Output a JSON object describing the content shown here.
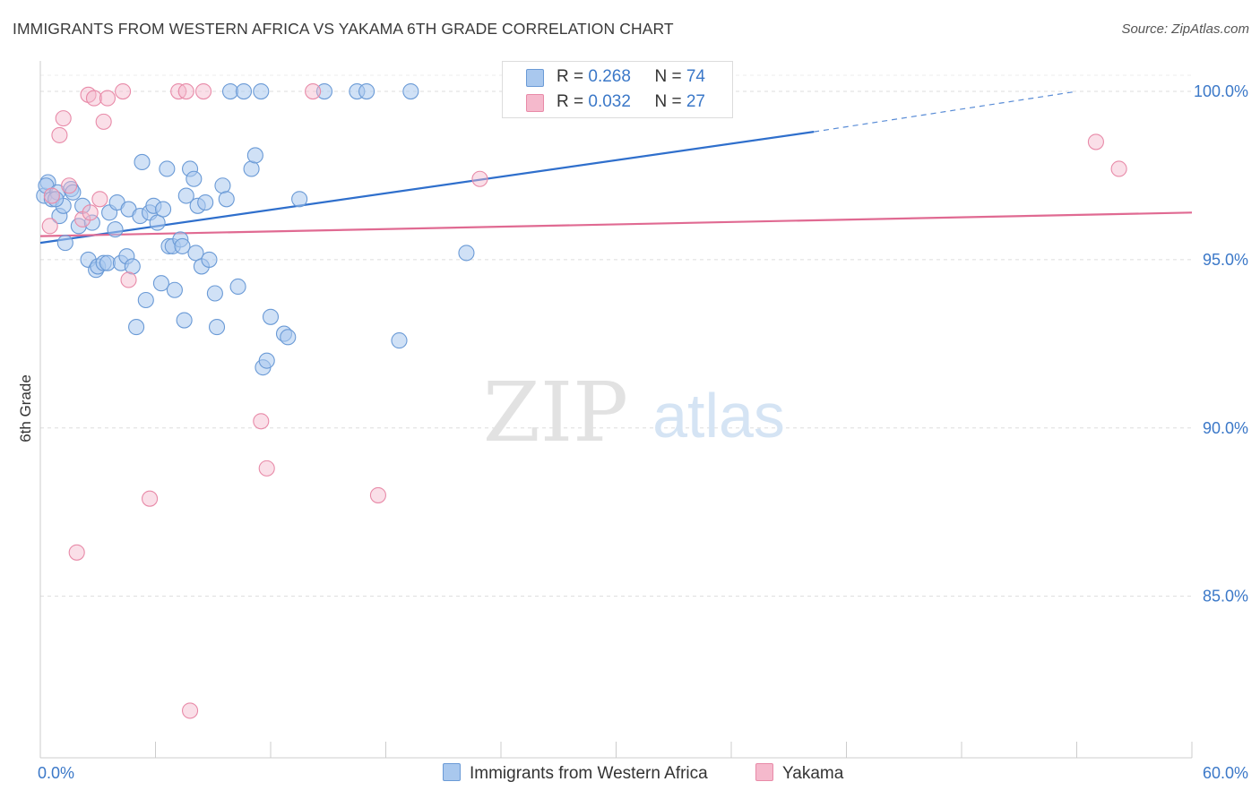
{
  "title": "IMMIGRANTS FROM WESTERN AFRICA VS YAKAMA 6TH GRADE CORRELATION CHART",
  "source": "Source: ZipAtlas.com",
  "watermark": {
    "zip": "ZIP",
    "atlas": "atlas"
  },
  "legend": {
    "rows": [
      {
        "r_label": "R = ",
        "r_value": "0.268",
        "n_label": "N = ",
        "n_value": "74"
      },
      {
        "r_label": "R = ",
        "r_value": "0.032",
        "n_label": "N = ",
        "n_value": "27"
      }
    ]
  },
  "bottom_legend": [
    "Immigrants from Western Africa",
    "Yakama"
  ],
  "colors": {
    "blue_fill": "#a9c8ee",
    "blue_stroke": "#6a9ad6",
    "blue_line": "#2f6fcc",
    "pink_fill": "#f5b9cc",
    "pink_stroke": "#e88aa8",
    "pink_line": "#e06a92",
    "axis_text": "#3b78c8",
    "grid": "#dddddd"
  },
  "chart_data": {
    "type": "scatter",
    "title": "IMMIGRANTS FROM WESTERN AFRICA VS YAKAMA 6TH GRADE CORRELATION CHART",
    "xlabel": "",
    "ylabel": "6th Grade",
    "xlim": [
      0,
      60
    ],
    "ylim": [
      80.2,
      100.8
    ],
    "x_tick_labels": [
      "0.0%",
      "60.0%"
    ],
    "y_ticks": [
      85,
      90,
      95,
      100
    ],
    "y_tick_labels": [
      "85.0%",
      "90.0%",
      "95.0%",
      "100.0%"
    ],
    "grid": true,
    "series": [
      {
        "name": "Immigrants from Western Africa",
        "color": "#a9c8ee",
        "points": [
          [
            0.2,
            96.9
          ],
          [
            0.4,
            97.3
          ],
          [
            0.3,
            97.2
          ],
          [
            0.6,
            96.8
          ],
          [
            0.9,
            97.0
          ],
          [
            1.0,
            96.3
          ],
          [
            1.2,
            96.6
          ],
          [
            1.3,
            95.5
          ],
          [
            1.6,
            97.1
          ],
          [
            1.7,
            97.0
          ],
          [
            2.0,
            96.0
          ],
          [
            2.2,
            96.6
          ],
          [
            2.5,
            95.0
          ],
          [
            2.7,
            96.1
          ],
          [
            2.9,
            94.7
          ],
          [
            3.0,
            94.8
          ],
          [
            3.3,
            94.9
          ],
          [
            3.5,
            94.9
          ],
          [
            3.6,
            96.4
          ],
          [
            3.9,
            95.9
          ],
          [
            4.0,
            96.7
          ],
          [
            4.2,
            94.9
          ],
          [
            4.5,
            95.1
          ],
          [
            4.6,
            96.5
          ],
          [
            4.8,
            94.8
          ],
          [
            5.0,
            93.0
          ],
          [
            5.2,
            96.3
          ],
          [
            5.3,
            97.9
          ],
          [
            5.5,
            93.8
          ],
          [
            5.7,
            96.4
          ],
          [
            5.9,
            96.6
          ],
          [
            6.1,
            96.1
          ],
          [
            6.3,
            94.3
          ],
          [
            6.4,
            96.5
          ],
          [
            6.6,
            97.7
          ],
          [
            6.7,
            95.4
          ],
          [
            6.9,
            95.4
          ],
          [
            7.0,
            94.1
          ],
          [
            7.3,
            95.6
          ],
          [
            7.4,
            95.4
          ],
          [
            7.5,
            93.2
          ],
          [
            7.6,
            96.9
          ],
          [
            7.8,
            97.7
          ],
          [
            8.0,
            97.4
          ],
          [
            8.1,
            95.2
          ],
          [
            8.2,
            96.6
          ],
          [
            8.4,
            94.8
          ],
          [
            8.6,
            96.7
          ],
          [
            8.8,
            95.0
          ],
          [
            9.1,
            94.0
          ],
          [
            9.2,
            93.0
          ],
          [
            9.5,
            97.2
          ],
          [
            9.7,
            96.8
          ],
          [
            9.9,
            100.0
          ],
          [
            10.3,
            94.2
          ],
          [
            10.6,
            100.0
          ],
          [
            11.0,
            97.7
          ],
          [
            11.2,
            98.1
          ],
          [
            11.5,
            100.0
          ],
          [
            11.6,
            91.8
          ],
          [
            11.8,
            92.0
          ],
          [
            12.0,
            93.3
          ],
          [
            12.7,
            92.8
          ],
          [
            12.9,
            92.7
          ],
          [
            13.5,
            96.8
          ],
          [
            14.8,
            100.0
          ],
          [
            16.5,
            100.0
          ],
          [
            17.0,
            100.0
          ],
          [
            18.7,
            92.6
          ],
          [
            19.3,
            100.0
          ],
          [
            22.2,
            95.2
          ],
          [
            34.0,
            100.0
          ],
          [
            35.5,
            100.0
          ],
          [
            0.8,
            96.8
          ]
        ],
        "fit_line": {
          "x": [
            0,
            40.3
          ],
          "y": [
            95.5,
            98.8
          ],
          "dashed_extension": {
            "x": [
              40.3,
              54
            ],
            "y": [
              98.8,
              100.0
            ]
          }
        }
      },
      {
        "name": "Yakama",
        "color": "#f5b9cc",
        "points": [
          [
            0.5,
            96.0
          ],
          [
            0.6,
            96.9
          ],
          [
            1.0,
            98.7
          ],
          [
            1.2,
            99.2
          ],
          [
            1.5,
            97.2
          ],
          [
            1.9,
            86.3
          ],
          [
            2.2,
            96.2
          ],
          [
            2.5,
            99.9
          ],
          [
            2.8,
            99.8
          ],
          [
            3.1,
            96.8
          ],
          [
            3.3,
            99.1
          ],
          [
            3.5,
            99.8
          ],
          [
            4.3,
            100.0
          ],
          [
            4.6,
            94.4
          ],
          [
            5.7,
            87.9
          ],
          [
            7.2,
            100.0
          ],
          [
            7.6,
            100.0
          ],
          [
            7.8,
            81.6
          ],
          [
            8.5,
            100.0
          ],
          [
            11.5,
            90.2
          ],
          [
            11.8,
            88.8
          ],
          [
            14.2,
            100.0
          ],
          [
            17.6,
            88.0
          ],
          [
            22.9,
            97.4
          ],
          [
            55.0,
            98.5
          ],
          [
            56.2,
            97.7
          ],
          [
            2.6,
            96.4
          ]
        ],
        "fit_line": {
          "x": [
            0,
            60
          ],
          "y": [
            95.7,
            96.4
          ]
        }
      }
    ]
  }
}
